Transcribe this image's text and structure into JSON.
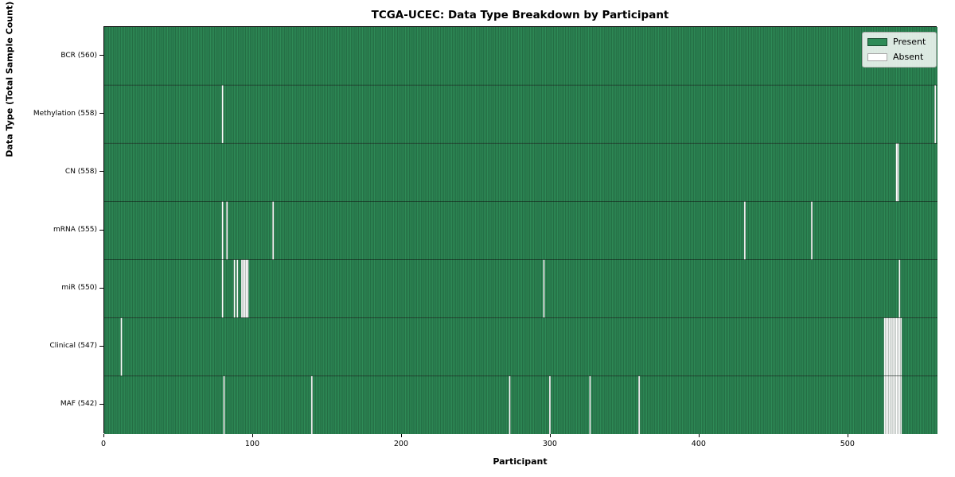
{
  "chart_data": {
    "type": "heatmap",
    "title": "TCGA-UCEC: Data Type Breakdown by Participant",
    "xlabel": "Participant",
    "ylabel": "Data Type (Total Sample Count)",
    "n_participants": 560,
    "xlim": [
      0,
      560
    ],
    "x_ticks": [
      0,
      100,
      200,
      300,
      400,
      500
    ],
    "grid": false,
    "legend_position": "upper right",
    "legend": [
      {
        "label": "Present",
        "color": "#2e8b57"
      },
      {
        "label": "Absent",
        "color": "#ffffff"
      }
    ],
    "colors": {
      "present": "#2e8b57",
      "absent": "#ffffff",
      "cell_edge": "rgba(0,0,0,0.38)",
      "row_divider": "rgba(0,0,0,0.5)"
    },
    "rows": [
      {
        "label": "BCR (560)",
        "data_type": "BCR",
        "present_count": 560,
        "absent_participants": []
      },
      {
        "label": "Methylation (558)",
        "data_type": "Methylation",
        "present_count": 558,
        "absent_participants": [
          79,
          558
        ]
      },
      {
        "label": "CN (558)",
        "data_type": "CN",
        "present_count": 558,
        "absent_participants": [
          532,
          533
        ]
      },
      {
        "label": "mRNA (555)",
        "data_type": "mRNA",
        "present_count": 555,
        "absent_participants": [
          79,
          82,
          113,
          430,
          475
        ]
      },
      {
        "label": "miR (550)",
        "data_type": "miR",
        "present_count": 550,
        "absent_participants": [
          79,
          87,
          89,
          92,
          93,
          94,
          95,
          96,
          295,
          534
        ]
      },
      {
        "label": "Clinical (547)",
        "data_type": "Clinical",
        "present_count": 547,
        "absent_participants": [
          11,
          524,
          525,
          526,
          527,
          528,
          529,
          530,
          531,
          532,
          533,
          534,
          535
        ]
      },
      {
        "label": "MAF (542)",
        "data_type": "MAF",
        "present_count": 542,
        "absent_participants": [
          80,
          139,
          272,
          299,
          326,
          359,
          524,
          525,
          526,
          527,
          528,
          529,
          530,
          531,
          532,
          533,
          534,
          535
        ]
      }
    ]
  }
}
